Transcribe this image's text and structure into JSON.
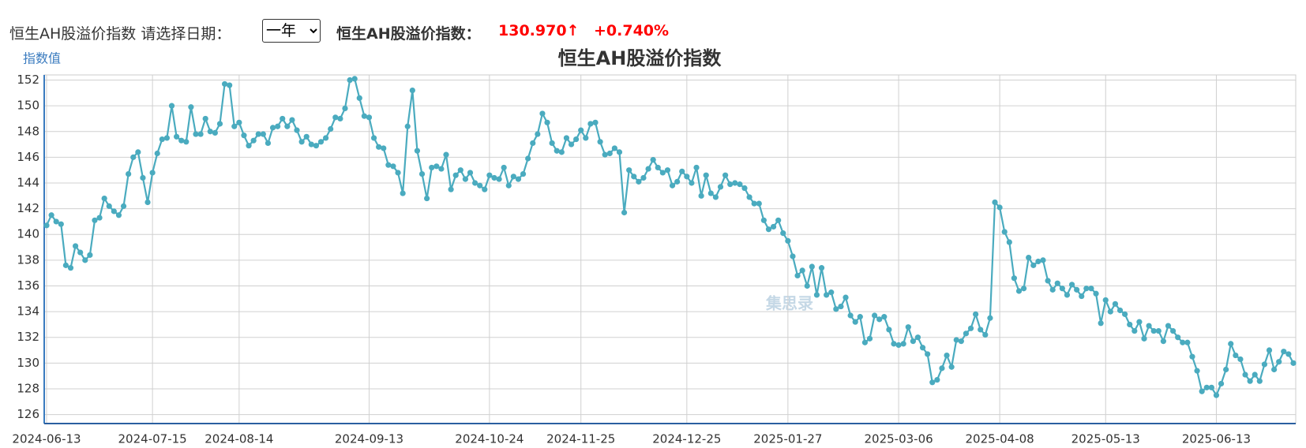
{
  "header": {
    "label": "恒生AH股溢价指数 请选择日期：",
    "period": "一年",
    "index_label": "恒生AH股溢价指数：",
    "index_value": "130.970↑",
    "change": "+0.740%"
  },
  "chart_data": {
    "type": "line",
    "title": "恒生AH股溢价指数",
    "y_axis_label": "指数值",
    "watermark": "集思录",
    "categories": [
      "2024-06-13",
      null,
      null,
      null,
      null,
      null,
      null,
      null,
      null,
      null,
      null,
      null,
      null,
      null,
      null,
      null,
      null,
      null,
      null,
      null,
      null,
      null,
      "2024-07-15",
      null,
      null,
      null,
      null,
      null,
      null,
      null,
      null,
      null,
      null,
      null,
      null,
      null,
      null,
      null,
      null,
      null,
      "2024-08-14",
      null,
      null,
      null,
      null,
      null,
      null,
      null,
      null,
      null,
      null,
      null,
      null,
      null,
      null,
      null,
      null,
      null,
      null,
      null,
      null,
      null,
      null,
      null,
      null,
      null,
      null,
      "2024-09-13",
      null,
      null,
      null,
      null,
      null,
      null,
      null,
      null,
      null,
      null,
      null,
      null,
      null,
      null,
      null,
      null,
      null,
      null,
      null,
      null,
      null,
      null,
      null,
      null,
      "2024-10-24",
      null,
      null,
      null,
      null,
      null,
      null,
      null,
      null,
      null,
      null,
      null,
      null,
      null,
      null,
      null,
      null,
      null,
      null,
      "2024-11-25",
      null,
      null,
      null,
      null,
      null,
      null,
      null,
      null,
      null,
      null,
      null,
      null,
      null,
      null,
      null,
      null,
      null,
      null,
      null,
      null,
      null,
      "2024-12-25",
      null,
      null,
      null,
      null,
      null,
      null,
      null,
      null,
      null,
      null,
      null,
      null,
      null,
      null,
      null,
      null,
      null,
      null,
      null,
      null,
      "2025-01-27",
      null,
      null,
      null,
      null,
      null,
      null,
      null,
      null,
      null,
      null,
      null,
      null,
      null,
      null,
      null,
      null,
      null,
      null,
      null,
      null,
      null,
      null,
      "2025-03-06",
      null,
      null,
      null,
      null,
      null,
      null,
      null,
      null,
      null,
      null,
      null,
      null,
      null,
      null,
      null,
      null,
      null,
      null,
      null,
      null,
      "2025-04-08",
      null,
      null,
      null,
      null,
      null,
      null,
      null,
      null,
      null,
      null,
      null,
      null,
      null,
      null,
      null,
      null,
      null,
      null,
      null,
      null,
      null,
      "2025-05-13",
      null,
      null,
      null,
      null,
      null,
      null,
      null,
      null,
      null,
      null,
      null,
      null,
      null,
      null,
      null,
      null,
      null,
      null,
      null,
      null,
      null,
      null,
      "2025-06-13",
      null,
      null,
      null,
      null,
      null,
      null,
      null,
      null,
      null,
      null,
      null,
      null,
      null,
      null,
      null,
      null
    ],
    "series": [
      {
        "name": "指数值",
        "color": "#4aabbf",
        "values": [
          140.7,
          141.5,
          141.0,
          140.8,
          137.6,
          137.4,
          139.1,
          138.6,
          138.0,
          138.4,
          141.1,
          141.3,
          142.8,
          142.2,
          141.8,
          141.5,
          142.2,
          144.7,
          146.0,
          146.4,
          144.4,
          142.5,
          144.8,
          146.3,
          147.4,
          147.5,
          150.0,
          147.6,
          147.3,
          147.2,
          149.9,
          147.8,
          147.8,
          149.0,
          148.0,
          147.9,
          148.6,
          151.7,
          151.6,
          148.4,
          148.7,
          147.7,
          146.9,
          147.3,
          147.8,
          147.8,
          147.1,
          148.3,
          148.4,
          149.0,
          148.4,
          148.9,
          148.1,
          147.2,
          147.6,
          147.0,
          146.9,
          147.2,
          147.5,
          148.2,
          149.1,
          149.0,
          149.8,
          152.0,
          152.1,
          150.6,
          149.2,
          149.1,
          147.5,
          146.8,
          146.7,
          145.4,
          145.3,
          144.8,
          143.2,
          148.4,
          151.2,
          146.5,
          144.7,
          142.8,
          145.2,
          145.3,
          145.1,
          146.2,
          143.5,
          144.6,
          145.0,
          144.3,
          144.8,
          144.0,
          143.8,
          143.5,
          144.6,
          144.4,
          144.3,
          145.2,
          143.8,
          144.5,
          144.3,
          144.7,
          145.9,
          147.1,
          147.8,
          149.4,
          148.7,
          147.1,
          146.5,
          146.4,
          147.5,
          147.0,
          147.4,
          148.1,
          147.5,
          148.6,
          148.7,
          147.2,
          146.2,
          146.3,
          146.7,
          146.4,
          141.7,
          145.0,
          144.5,
          144.1,
          144.4,
          145.1,
          145.8,
          145.2,
          144.8,
          145.0,
          143.8,
          144.1,
          144.9,
          144.5,
          144.0,
          145.2,
          143.0,
          144.6,
          143.2,
          142.9,
          143.7,
          144.6,
          143.9,
          144.0,
          143.9,
          143.6,
          142.9,
          142.4,
          142.4,
          141.1,
          140.4,
          140.6,
          141.1,
          140.1,
          139.5,
          138.3,
          136.8,
          137.2,
          136.0,
          137.5,
          135.3,
          137.4,
          135.3,
          135.5,
          134.2,
          134.4,
          135.1,
          133.7,
          133.2,
          133.6,
          131.6,
          131.9,
          133.7,
          133.4,
          133.6,
          132.6,
          131.5,
          131.4,
          131.5,
          132.8,
          131.7,
          132.0,
          131.2,
          130.7,
          128.5,
          128.7,
          129.6,
          130.6,
          129.7,
          131.8,
          131.7,
          132.3,
          132.7,
          133.8,
          132.6,
          132.2,
          133.5,
          142.5,
          142.1,
          140.2,
          139.4,
          136.6,
          135.6,
          135.8,
          138.2,
          137.6,
          137.9,
          138.0,
          136.4,
          135.7,
          136.2,
          135.8,
          135.3,
          136.1,
          135.7,
          135.2,
          135.8,
          135.8,
          135.4,
          133.1,
          134.9,
          134.0,
          134.6,
          134.1,
          133.8,
          133.0,
          132.5,
          133.2,
          131.9,
          132.9,
          132.5,
          132.5,
          131.7,
          132.9,
          132.5,
          132.0,
          131.6,
          131.6,
          130.5,
          129.4,
          127.8,
          128.1,
          128.1,
          127.5,
          128.4,
          129.5,
          131.5,
          130.6,
          130.3,
          129.1,
          128.6,
          129.1,
          128.6,
          129.9,
          131.0,
          129.5,
          130.1,
          130.9,
          130.7,
          130.0
        ]
      }
    ],
    "ylim": [
      125.3,
      152.4
    ],
    "yticks": [
      126,
      128,
      130,
      132,
      134,
      136,
      138,
      140,
      142,
      144,
      146,
      148,
      150,
      152
    ],
    "grid": true
  }
}
